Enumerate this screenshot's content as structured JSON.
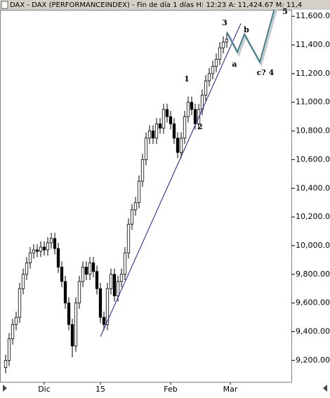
{
  "chart_data": {
    "type": "candlestick",
    "title": "DAX - DAX (PERFORMANCEINDEX) - Fin de día 1 días  H: 12:23  A: 11,424.67  M: 11,4",
    "x": [
      0,
      1,
      2,
      3,
      4,
      5,
      6,
      7,
      8,
      9,
      10,
      11,
      12,
      13,
      14,
      15,
      16,
      17,
      18,
      19,
      20,
      21,
      22,
      23,
      24,
      25,
      26,
      27,
      28,
      29,
      30,
      31,
      32,
      33,
      34,
      35,
      36,
      37,
      38,
      39,
      40,
      41,
      42,
      43,
      44,
      45,
      46,
      47,
      48,
      49,
      50,
      51,
      52,
      53,
      54,
      55,
      56,
      57,
      58,
      59,
      60,
      61,
      62,
      63
    ],
    "open": [
      9150,
      9200,
      9350,
      9450,
      9500,
      9700,
      9800,
      9880,
      9950,
      9970,
      9960,
      9990,
      9970,
      10020,
      10050,
      9980,
      9850,
      9750,
      9600,
      9450,
      9300,
      9600,
      9750,
      9850,
      9800,
      9880,
      9820,
      9700,
      9500,
      9450,
      9700,
      9800,
      9650,
      9750,
      9800,
      9950,
      10150,
      10250,
      10300,
      10450,
      10600,
      10750,
      10800,
      10750,
      10850,
      10820,
      10950,
      10900,
      10850,
      10750,
      10650,
      10750,
      10900,
      11000,
      10950,
      10850,
      10950,
      11050,
      11150,
      11200,
      11250,
      11300,
      11380,
      11420
    ],
    "high": [
      9240,
      9390,
      9490,
      9540,
      9740,
      9840,
      9920,
      9990,
      10010,
      10010,
      10030,
      10030,
      10060,
      10090,
      10090,
      10020,
      9890,
      9790,
      9640,
      9490,
      9640,
      9790,
      9890,
      9890,
      9920,
      9920,
      9860,
      9740,
      9540,
      9740,
      9840,
      9840,
      9790,
      9840,
      9990,
      10190,
      10290,
      10340,
      10490,
      10640,
      10790,
      10840,
      10840,
      10890,
      10890,
      10990,
      10990,
      10940,
      10890,
      10790,
      10790,
      10940,
      11040,
      11040,
      10990,
      10990,
      11090,
      11190,
      11240,
      11290,
      11340,
      11420,
      11460,
      11480
    ],
    "low": [
      9110,
      9160,
      9310,
      9410,
      9460,
      9660,
      9760,
      9840,
      9910,
      9920,
      9920,
      9930,
      9930,
      9980,
      9940,
      9810,
      9710,
      9560,
      9410,
      9220,
      9260,
      9560,
      9710,
      9760,
      9760,
      9780,
      9660,
      9460,
      9410,
      9410,
      9660,
      9610,
      9610,
      9710,
      9760,
      9910,
      10110,
      10210,
      10260,
      10410,
      10560,
      10710,
      10710,
      10710,
      10780,
      10780,
      10860,
      10810,
      10710,
      10610,
      10610,
      10710,
      10860,
      10910,
      10810,
      10810,
      10910,
      11010,
      11110,
      11160,
      11210,
      11260,
      11340,
      11380
    ],
    "close": [
      9200,
      9350,
      9450,
      9500,
      9700,
      9800,
      9880,
      9950,
      9970,
      9960,
      9990,
      9970,
      10020,
      10050,
      9980,
      9850,
      9750,
      9600,
      9450,
      9300,
      9600,
      9750,
      9850,
      9800,
      9880,
      9820,
      9700,
      9500,
      9450,
      9700,
      9800,
      9650,
      9750,
      9800,
      9950,
      10150,
      10250,
      10300,
      10450,
      10600,
      10750,
      10800,
      10750,
      10850,
      10820,
      10950,
      10900,
      10850,
      10750,
      10650,
      10750,
      10900,
      11000,
      10950,
      10850,
      10950,
      11050,
      11150,
      11200,
      11250,
      11300,
      11380,
      11420,
      11440
    ],
    "xlim": [
      -1.6,
      81.4
    ],
    "ylim": [
      9045,
      11645
    ],
    "xticks": [
      {
        "value": 11,
        "label": "Dic"
      },
      {
        "value": 27,
        "label": "15"
      },
      {
        "value": 47,
        "label": "Feb"
      },
      {
        "value": 64,
        "label": "Mar"
      }
    ],
    "yticks": [
      {
        "value": 9200,
        "label": "9,200.00"
      },
      {
        "value": 9400,
        "label": "9,400.00"
      },
      {
        "value": 9600,
        "label": "9,600.00"
      },
      {
        "value": 9800,
        "label": "9,800.00"
      },
      {
        "value": 10000,
        "label": "10,000.00"
      },
      {
        "value": 10200,
        "label": "10,200.00"
      },
      {
        "value": 10400,
        "label": "10,400.00"
      },
      {
        "value": 10600,
        "label": "10,600.00"
      },
      {
        "value": 10800,
        "label": "10,800.00"
      },
      {
        "value": 11000,
        "label": "11,000.00"
      },
      {
        "value": 11200,
        "label": "11,200.00"
      },
      {
        "value": 11400,
        "label": "11,400.00"
      },
      {
        "value": 11600,
        "label": "11,600.00"
      }
    ],
    "trendline": {
      "color": "#1a1aa0",
      "x": [
        27,
        67
      ],
      "y": [
        9365,
        11550
      ]
    },
    "projection": {
      "color": "#3e7f8c",
      "x": [
        63,
        66,
        68,
        72.4,
        77
      ],
      "y": [
        11490,
        11350,
        11475,
        11280,
        11690
      ]
    },
    "annotations": [
      "1",
      "2",
      "3",
      "a",
      "b",
      "c? 4",
      "5"
    ]
  }
}
